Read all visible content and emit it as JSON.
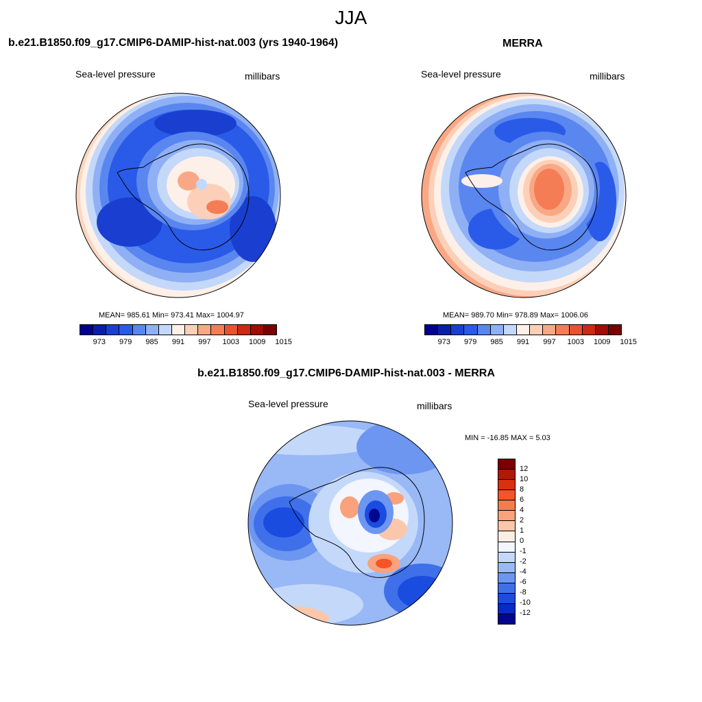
{
  "figure": {
    "title": "JJA"
  },
  "panels": {
    "model": {
      "title": "b.e21.B1850.f09_g17.CMIP6-DAMIP-hist-nat.003 (yrs 1940-1964)",
      "variable": "Sea-level pressure",
      "units": "millibars",
      "stats": "MEAN= 985.61  Min= 973.41  Max= 1004.97"
    },
    "obs": {
      "title": "MERRA",
      "variable": "Sea-level pressure",
      "units": "millibars",
      "stats": "MEAN= 989.70  Min= 978.89  Max= 1006.06"
    },
    "diff": {
      "title": "b.e21.B1850.f09_g17.CMIP6-DAMIP-hist-nat.003 - MERRA",
      "variable": "Sea-level pressure",
      "units": "millibars",
      "stats": "MIN = -16.85 MAX =   5.03"
    }
  },
  "colorbar_main": {
    "colors": [
      "#00008f",
      "#0a1fa8",
      "#1a3fd0",
      "#2a5ae8",
      "#5a86f0",
      "#8fb0f5",
      "#c4d8fa",
      "#fdf0e8",
      "#fcd0b8",
      "#f9a886",
      "#f57d55",
      "#e8522e",
      "#cc2a12",
      "#a00c06",
      "#7a0000"
    ],
    "tick_labels": [
      "973",
      "979",
      "985",
      "991",
      "997",
      "1003",
      "1009",
      "1015"
    ],
    "tick_boundaries": [
      1,
      3,
      5,
      7,
      9,
      11,
      13,
      15
    ]
  },
  "colorbar_diff": {
    "colors_top_to_bottom": [
      "#7a0000",
      "#b01a04",
      "#d93010",
      "#f55428",
      "#f77c4c",
      "#f9a27c",
      "#fbc7aa",
      "#fdeee4",
      "#f3f5ff",
      "#c4d8fa",
      "#98b8f6",
      "#6c96f0",
      "#3f70ea",
      "#1a4ce0",
      "#0a2ac4",
      "#00078f"
    ],
    "tick_labels": [
      "12",
      "10",
      "8",
      "6",
      "4",
      "2",
      "1",
      "0",
      "-1",
      "-2",
      "-4",
      "-6",
      "-8",
      "-10",
      "-12"
    ]
  }
}
